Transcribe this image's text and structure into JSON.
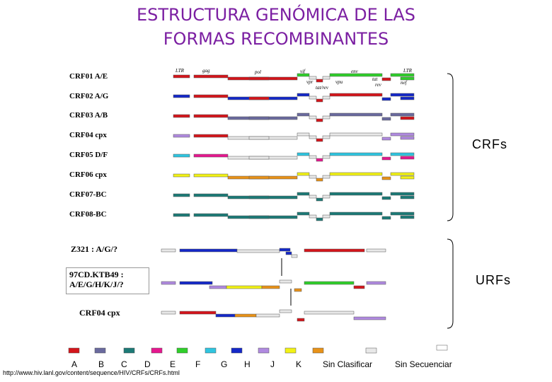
{
  "title_line1": "ESTRUCTURA GENÓMICA DE LAS",
  "title_line2": "FORMAS RECOMBINANTES",
  "crf_group_label": "CRFs",
  "urf_group_label": "URFs",
  "gene_labels": [
    "LTR",
    "gag",
    "pol",
    "vif",
    "vpr",
    "tat/rev",
    "vpu",
    "env",
    "tat",
    "rev",
    "LTR",
    "nef"
  ],
  "crf_rows": [
    {
      "label": "CRF01 A/E"
    },
    {
      "label": "CRF02 A/G"
    },
    {
      "label": "CRF03 A/B"
    },
    {
      "label": "CRF04 cpx"
    },
    {
      "label": "CRF05 D/F"
    },
    {
      "label": "CRF06 cpx"
    },
    {
      "label": "CRF07-BC"
    },
    {
      "label": "CRF08-BC"
    }
  ],
  "urf_rows": [
    {
      "label": "Z321 : A/G/?"
    },
    {
      "label_line1": "97CD.KTB49 :",
      "label_line2": "A/E/G/H/K/J/?"
    },
    {
      "label": "CRF04 cpx"
    }
  ],
  "legend": [
    {
      "label": "A",
      "color": "#d4151b"
    },
    {
      "label": "B",
      "color": "#6a6a9e"
    },
    {
      "label": "C",
      "color": "#1c7a76"
    },
    {
      "label": "D",
      "color": "#e6178f"
    },
    {
      "label": "E",
      "color": "#2fcf2a"
    },
    {
      "label": "F",
      "color": "#2fc5e0"
    },
    {
      "label": "G",
      "color": "#1428c8"
    },
    {
      "label": "H",
      "color": "#b08ae0"
    },
    {
      "label": "J",
      "color": "#f2f215"
    },
    {
      "label": "K",
      "color": "#e89218"
    },
    {
      "label": "Sin Clasificar",
      "color": "#e8e8e8"
    },
    {
      "label": "Sin Secuenciar",
      "color": "#ffffff"
    }
  ],
  "source_url": "http://www.hiv.lanl.gov/content/sequence/HIV/CRFs/CRFs.html"
}
